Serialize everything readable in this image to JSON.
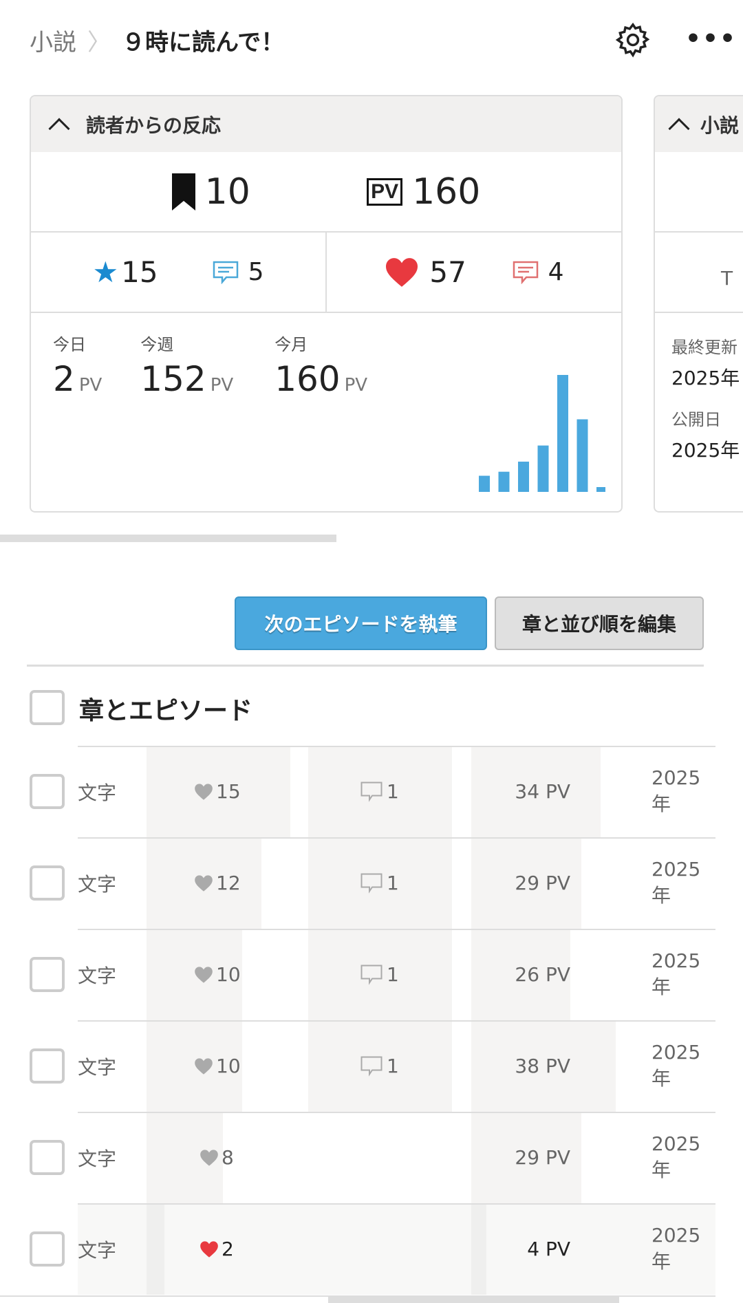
{
  "header": {
    "breadcrumb_parent": "小説",
    "separator": "〉",
    "title": "９時に読んで！",
    "settings_icon": "gear-icon",
    "more_icon": "more-dots-icon",
    "more_label": "•••"
  },
  "reactions_card": {
    "title": "読者からの反応",
    "bookmarks": "10",
    "total_pv": "160",
    "pv_badge": "PV",
    "stars": "15",
    "reviews": "5",
    "hearts": "57",
    "comments": "4",
    "today_label": "今日",
    "today": "2",
    "week_label": "今週",
    "week": "152",
    "month_label": "今月",
    "month": "160",
    "pv_unit": "PV",
    "colors": {
      "star": "#1a8ad0",
      "review": "#4aa8d8",
      "heart": "#e8393f",
      "comment": "#e07070",
      "bar": "#4aa8de"
    }
  },
  "chart_data": {
    "type": "bar",
    "categories": [
      "",
      "",
      "",
      "",
      "",
      "",
      ""
    ],
    "values": [
      8,
      10,
      15,
      23,
      58,
      36,
      2
    ],
    "title": "",
    "xlabel": "",
    "ylabel": "",
    "grid": false
  },
  "info_card": {
    "title": "小説",
    "last_updated_label": "最終更新",
    "last_updated": "2025年",
    "published_label": "公開日",
    "published": "2025年",
    "partial_text": "T"
  },
  "actions": {
    "write_next": "次のエピソードを執筆",
    "edit_chapters": "章と並び順を編集"
  },
  "episodes": {
    "title": "章とエピソード",
    "rows": [
      {
        "chars": "文字",
        "hearts": 15,
        "comments": 1,
        "pv": 34,
        "pv_label": "34 PV",
        "date": "2025年"
      },
      {
        "chars": "文字",
        "hearts": 12,
        "comments": 1,
        "pv": 29,
        "pv_label": "29 PV",
        "date": "2025年"
      },
      {
        "chars": "文字",
        "hearts": 10,
        "comments": 1,
        "pv": 26,
        "pv_label": "26 PV",
        "date": "2025年"
      },
      {
        "chars": "文字",
        "hearts": 10,
        "comments": 1,
        "pv": 38,
        "pv_label": "38 PV",
        "date": "2025年"
      },
      {
        "chars": "文字",
        "hearts": 8,
        "comments": null,
        "pv": 29,
        "pv_label": "29 PV",
        "date": "2025年"
      },
      {
        "chars": "文字",
        "hearts": 2,
        "comments": null,
        "pv": 4,
        "pv_label": "4 PV",
        "date": "2025年",
        "highlight": true
      }
    ]
  }
}
